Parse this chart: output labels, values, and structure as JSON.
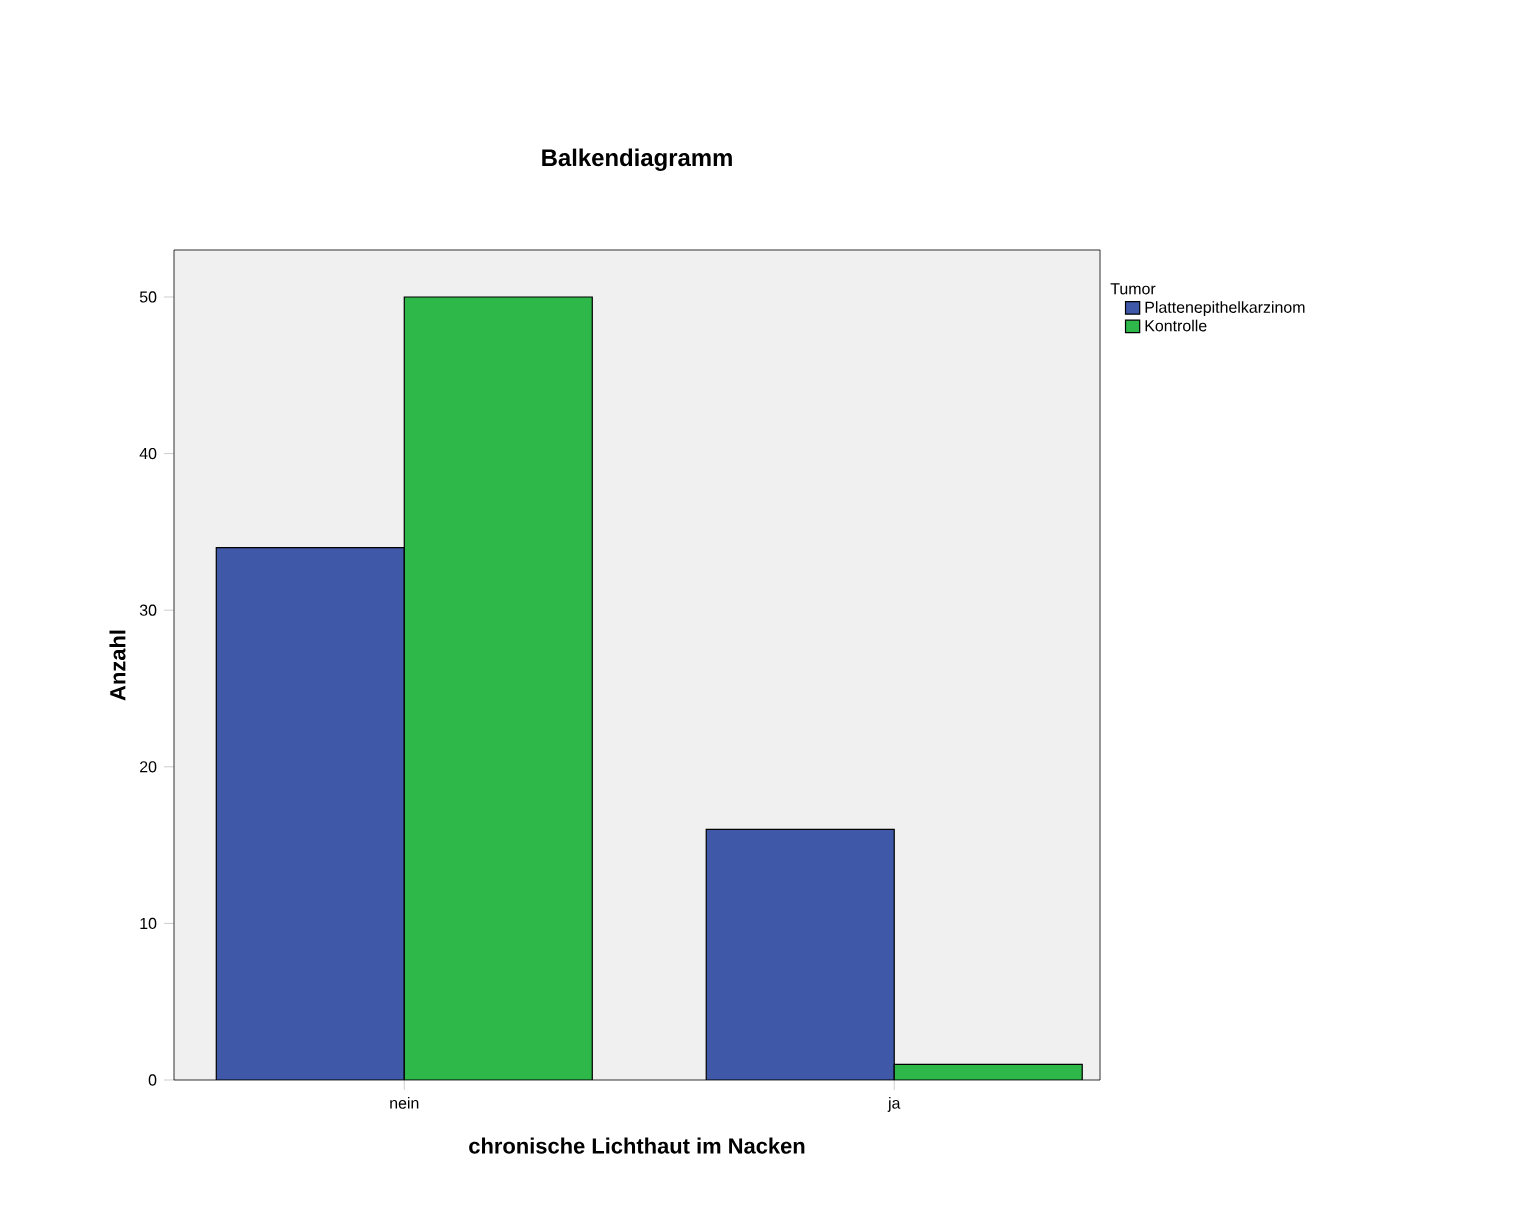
{
  "chart_data": {
    "type": "bar",
    "title": "Balkendiagramm",
    "xlabel": "chronische Lichthaut im Nacken",
    "ylabel": "Anzahl",
    "legend_title": "Tumor",
    "categories": [
      "nein",
      "ja"
    ],
    "series": [
      {
        "name": "Plattenepithelkarzinom",
        "color": "#3f58a8",
        "values": [
          34,
          16
        ]
      },
      {
        "name": "Kontrolle",
        "color": "#2eb84a",
        "values": [
          50,
          1
        ]
      }
    ],
    "ylim": [
      0,
      53
    ],
    "yticks": [
      0,
      10,
      20,
      30,
      40,
      50
    ],
    "grid": false,
    "legend": "right"
  }
}
